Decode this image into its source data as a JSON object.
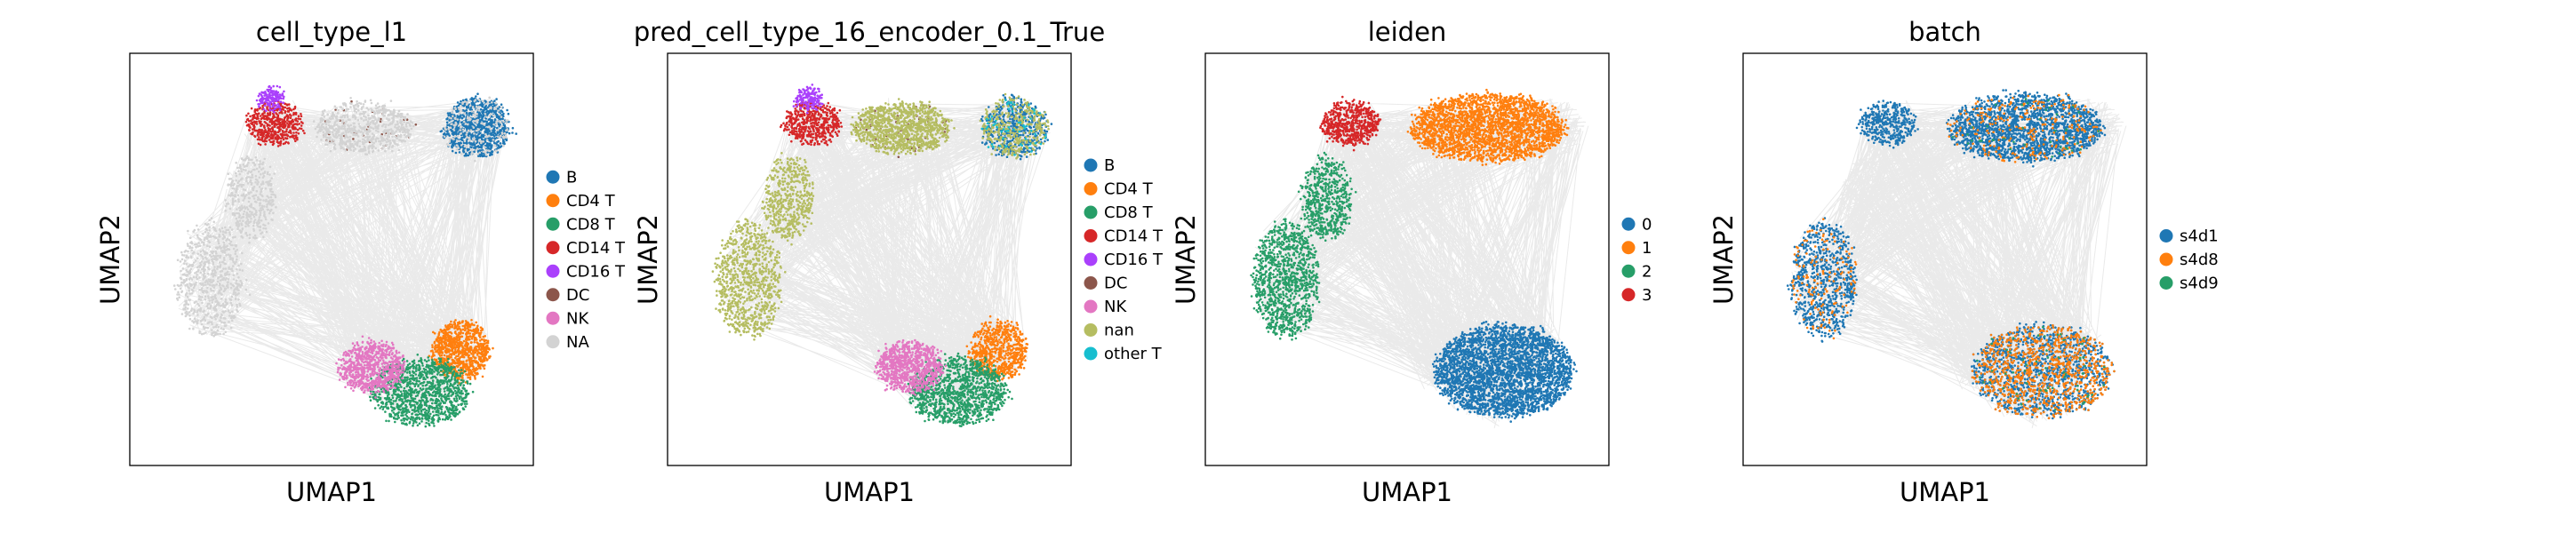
{
  "chart_data": [
    {
      "type": "scatter",
      "title": "cell_type_l1",
      "xlabel": "UMAP1",
      "ylabel": "UMAP2",
      "legend_position": "right",
      "grid": false,
      "legend": [
        {
          "label": "B",
          "color": "#1f77b4"
        },
        {
          "label": "CD4 T",
          "color": "#ff7f0e"
        },
        {
          "label": "CD8 T",
          "color": "#279e68"
        },
        {
          "label": "CD14 T",
          "color": "#d62728"
        },
        {
          "label": "CD16 T",
          "color": "#aa40fc"
        },
        {
          "label": "DC",
          "color": "#8c564b"
        },
        {
          "label": "NK",
          "color": "#e377c2"
        },
        {
          "label": "NA",
          "color": "#d3d3d3"
        }
      ]
    },
    {
      "type": "scatter",
      "title": "pred_cell_type_16_encoder_0.1_True",
      "xlabel": "UMAP1",
      "ylabel": "UMAP2",
      "legend_position": "right",
      "grid": false,
      "legend": [
        {
          "label": "B",
          "color": "#1f77b4"
        },
        {
          "label": "CD4 T",
          "color": "#ff7f0e"
        },
        {
          "label": "CD8 T",
          "color": "#279e68"
        },
        {
          "label": "CD14 T",
          "color": "#d62728"
        },
        {
          "label": "CD16 T",
          "color": "#aa40fc"
        },
        {
          "label": "DC",
          "color": "#8c564b"
        },
        {
          "label": "NK",
          "color": "#e377c2"
        },
        {
          "label": "nan",
          "color": "#b5bd61"
        },
        {
          "label": "other T",
          "color": "#17becf"
        }
      ]
    },
    {
      "type": "scatter",
      "title": "leiden",
      "xlabel": "UMAP1",
      "ylabel": "UMAP2",
      "legend_position": "right",
      "grid": false,
      "legend": [
        {
          "label": "0",
          "color": "#1f77b4"
        },
        {
          "label": "1",
          "color": "#ff7f0e"
        },
        {
          "label": "2",
          "color": "#279e68"
        },
        {
          "label": "3",
          "color": "#d62728"
        }
      ]
    },
    {
      "type": "scatter",
      "title": "batch",
      "xlabel": "UMAP1",
      "ylabel": "UMAP2",
      "legend_position": "right",
      "grid": false,
      "legend": [
        {
          "label": "s4d1",
          "color": "#1f77b4"
        },
        {
          "label": "s4d8",
          "color": "#ff7f0e"
        },
        {
          "label": "s4d9",
          "color": "#279e68"
        }
      ]
    }
  ]
}
